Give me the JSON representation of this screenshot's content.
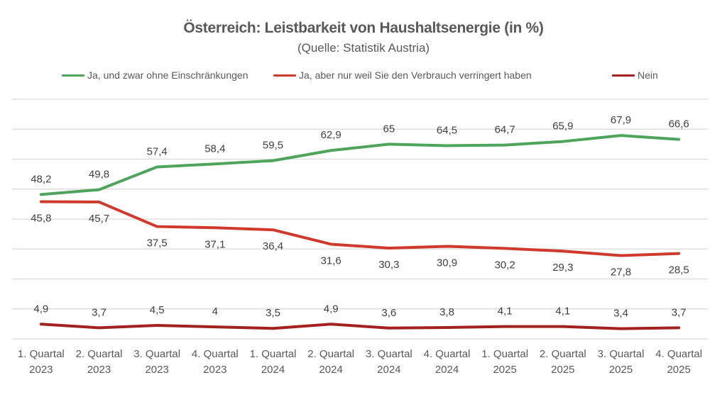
{
  "chart_data": {
    "type": "line",
    "title": "Österreich: Leistbarkeit von Haushaltsenergie (in %)",
    "subtitle": "(Quelle: Statistik Austria)",
    "xlabel": "",
    "ylabel": "",
    "ylim": [
      0,
      80
    ],
    "ygrid_step": 10,
    "grid": true,
    "legend_position": "top",
    "categories": [
      [
        "1. Quartal",
        "2023"
      ],
      [
        "2. Quartal",
        "2023"
      ],
      [
        "3. Quartal",
        "2023"
      ],
      [
        "4. Quartal",
        "2023"
      ],
      [
        "1. Quartal",
        "2024"
      ],
      [
        "2. Quartal",
        "2024"
      ],
      [
        "3. Quartal",
        "2024"
      ],
      [
        "4. Quartal",
        "2024"
      ],
      [
        "1. Quartal",
        "2025"
      ],
      [
        "2. Quartal",
        "2025"
      ],
      [
        "3. Quartal",
        "2025"
      ],
      [
        "4. Quartal",
        "2025"
      ]
    ],
    "series": [
      {
        "name": "Ja, und zwar ohne Einschränkungen",
        "color": "#4ea45a",
        "values": [
          48.2,
          49.8,
          57.4,
          58.4,
          59.5,
          62.9,
          65,
          64.5,
          64.7,
          65.9,
          67.9,
          66.6
        ],
        "labels": [
          "48,2",
          "49,8",
          "57,4",
          "58,4",
          "59,5",
          "62,9",
          "65",
          "64,5",
          "64,7",
          "65,9",
          "67,9",
          "66,6"
        ],
        "label_position": "above"
      },
      {
        "name": "Ja, aber nur weil Sie den Verbrauch verringert haben",
        "color": "#d03a2c",
        "values": [
          45.8,
          45.7,
          37.5,
          37.1,
          36.4,
          31.6,
          30.3,
          30.9,
          30.2,
          29.3,
          27.8,
          28.5
        ],
        "labels": [
          "45,8",
          "45,7",
          "37,5",
          "37,1",
          "36,4",
          "31,6",
          "30,3",
          "30,9",
          "30,2",
          "29,3",
          "27,8",
          "28,5"
        ],
        "label_position": "below"
      },
      {
        "name": "Nein",
        "color": "#a3221f",
        "values": [
          4.9,
          3.7,
          4.5,
          4,
          3.5,
          4.9,
          3.6,
          3.8,
          4.1,
          4.1,
          3.4,
          3.7
        ],
        "labels": [
          "4,9",
          "3,7",
          "4,5",
          "4",
          "3,5",
          "4,9",
          "3,6",
          "3,8",
          "4,1",
          "4,1",
          "3,4",
          "3,7"
        ],
        "label_position": "above"
      }
    ]
  }
}
